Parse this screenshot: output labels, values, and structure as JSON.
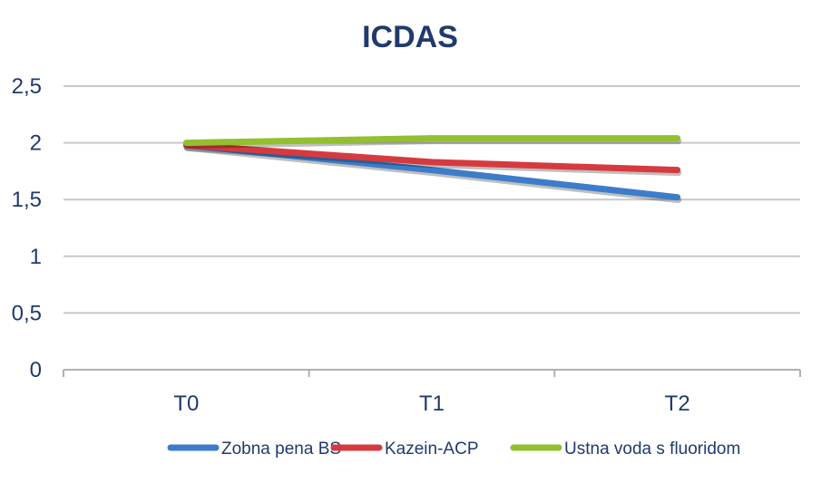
{
  "chart_data": {
    "type": "line",
    "title": "ICDAS",
    "xlabel": "",
    "ylabel": "",
    "categories": [
      "T0",
      "T1",
      "T2"
    ],
    "ylim": [
      0,
      2.5
    ],
    "yticks": [
      "0",
      "0,5",
      "1",
      "1,5",
      "2",
      "2,5"
    ],
    "ytick_values": [
      0,
      0.5,
      1,
      1.5,
      2,
      2.5
    ],
    "grid": true,
    "legend_position": "bottom",
    "series": [
      {
        "name": "Zobna pena BS",
        "color": "#3d7cc9",
        "values": [
          1.98,
          1.76,
          1.52
        ]
      },
      {
        "name": "Kazein-ACP",
        "color": "#d63a3f",
        "values": [
          1.98,
          1.83,
          1.76
        ]
      },
      {
        "name": "Ustna voda s fluoridom",
        "color": "#92c02e",
        "values": [
          2.0,
          2.04,
          2.04
        ]
      }
    ],
    "colors": {
      "title": "#1f3a6e",
      "axis_text": "#1f3a6e",
      "grid": "#c8c8c8"
    }
  }
}
